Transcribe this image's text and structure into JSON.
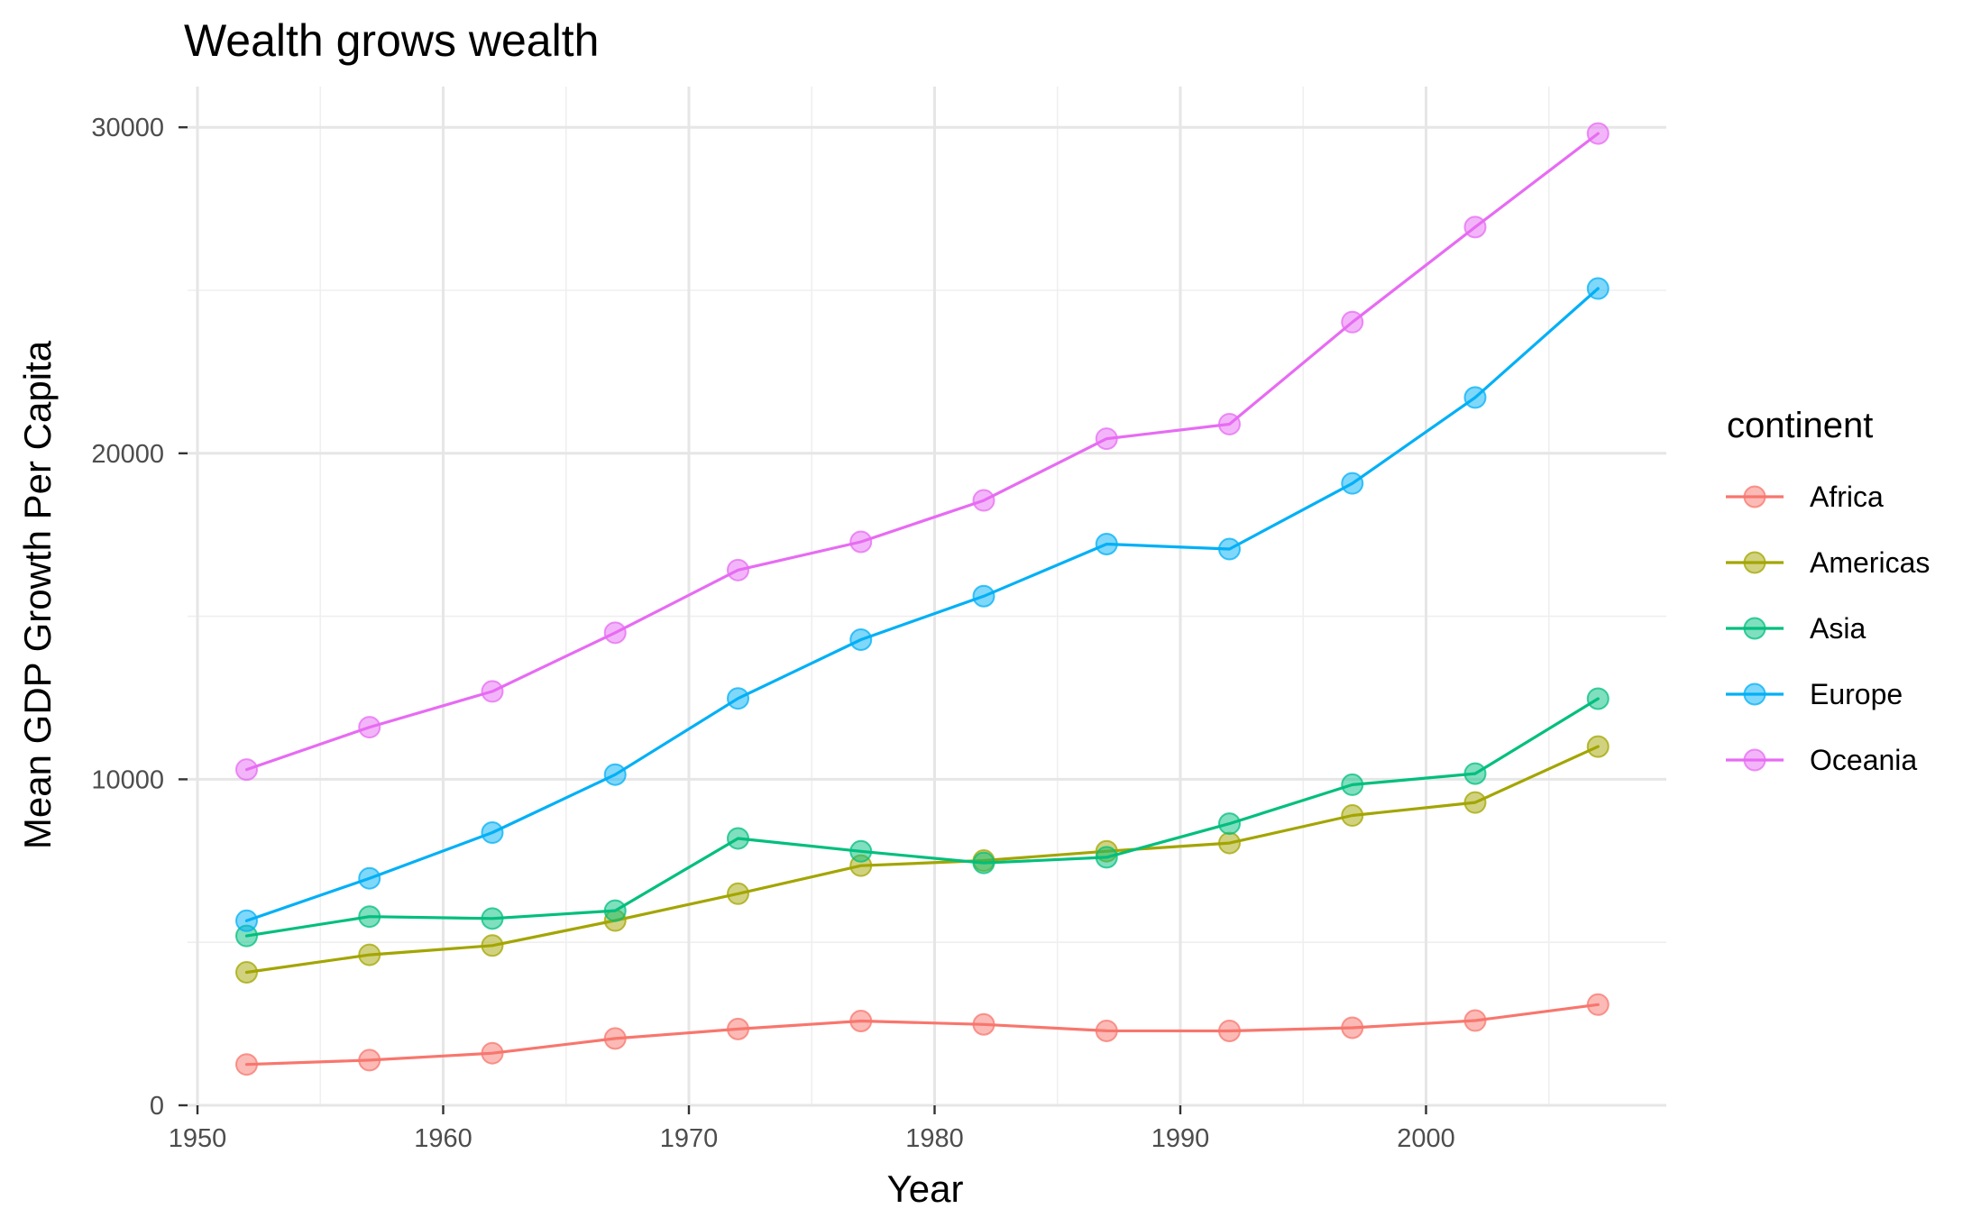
{
  "chart_data": {
    "type": "line",
    "title": "Wealth grows wealth",
    "xlabel": "Year",
    "ylabel": "Mean GDP Growth Per Capita",
    "xlim": [
      1950,
      2009
    ],
    "ylim": [
      0,
      31000
    ],
    "x_ticks": [
      1950,
      1960,
      1970,
      1980,
      1990,
      2000
    ],
    "y_ticks": [
      0,
      10000,
      20000,
      30000
    ],
    "grid": true,
    "legend": {
      "title": "continent",
      "position": "right"
    },
    "x": [
      1952,
      1957,
      1962,
      1967,
      1972,
      1977,
      1982,
      1987,
      1992,
      1997,
      2002,
      2007
    ],
    "series": [
      {
        "name": "Africa",
        "color": "#F8766D",
        "values": [
          1253,
          1385,
          1598,
          2050,
          2340,
          2586,
          2482,
          2283,
          2282,
          2379,
          2599,
          3089
        ]
      },
      {
        "name": "Americas",
        "color": "#A3A500",
        "values": [
          4079,
          4616,
          4901,
          5668,
          6491,
          7352,
          7507,
          7793,
          8045,
          8890,
          9288,
          11003
        ]
      },
      {
        "name": "Asia",
        "color": "#00BF7D",
        "values": [
          5195,
          5788,
          5729,
          5971,
          8187,
          7791,
          7434,
          7608,
          8640,
          9834,
          10174,
          12473
        ]
      },
      {
        "name": "Europe",
        "color": "#00B0F6",
        "values": [
          5661,
          6963,
          8365,
          10144,
          12480,
          14284,
          15618,
          17215,
          17062,
          19077,
          21712,
          25054
        ]
      },
      {
        "name": "Oceania",
        "color": "#E76BF3",
        "values": [
          10298,
          11599,
          12696,
          14496,
          16418,
          17284,
          18555,
          20448,
          20894,
          24024,
          26939,
          29810
        ]
      }
    ]
  }
}
